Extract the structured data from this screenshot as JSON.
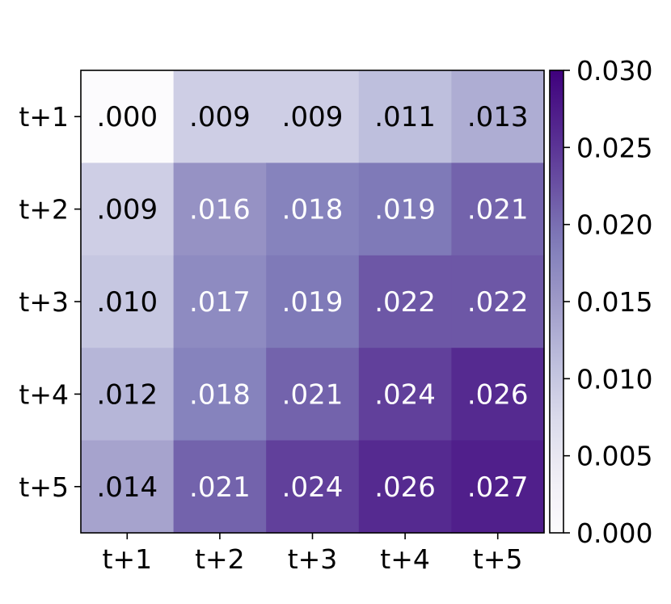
{
  "chart_data": {
    "type": "heatmap",
    "title": "",
    "xlabel": "",
    "ylabel": "",
    "x_categories": [
      "t+1",
      "t+2",
      "t+3",
      "t+4",
      "t+5"
    ],
    "y_categories": [
      "t+1",
      "t+2",
      "t+3",
      "t+4",
      "t+5"
    ],
    "values": [
      [
        0.0,
        0.009,
        0.009,
        0.011,
        0.013
      ],
      [
        0.009,
        0.016,
        0.018,
        0.019,
        0.021
      ],
      [
        0.01,
        0.017,
        0.019,
        0.022,
        0.022
      ],
      [
        0.012,
        0.018,
        0.021,
        0.024,
        0.026
      ],
      [
        0.014,
        0.021,
        0.024,
        0.026,
        0.027
      ]
    ],
    "cell_labels": [
      [
        ".000",
        ".009",
        ".009",
        ".011",
        ".013"
      ],
      [
        ".009",
        ".016",
        ".018",
        ".019",
        ".021"
      ],
      [
        ".010",
        ".017",
        ".019",
        ".022",
        ".022"
      ],
      [
        ".012",
        ".018",
        ".021",
        ".024",
        ".026"
      ],
      [
        ".014",
        ".021",
        ".024",
        ".026",
        ".027"
      ]
    ],
    "colorbar": {
      "range": [
        0.0,
        0.03
      ],
      "ticks": [
        0.0,
        0.005,
        0.01,
        0.015,
        0.02,
        0.025,
        0.03
      ],
      "tick_labels": [
        "0.000",
        "0.005",
        "0.010",
        "0.015",
        "0.020",
        "0.025",
        "0.030"
      ],
      "colormap": "Purples",
      "placement": "right"
    },
    "grid": false
  }
}
